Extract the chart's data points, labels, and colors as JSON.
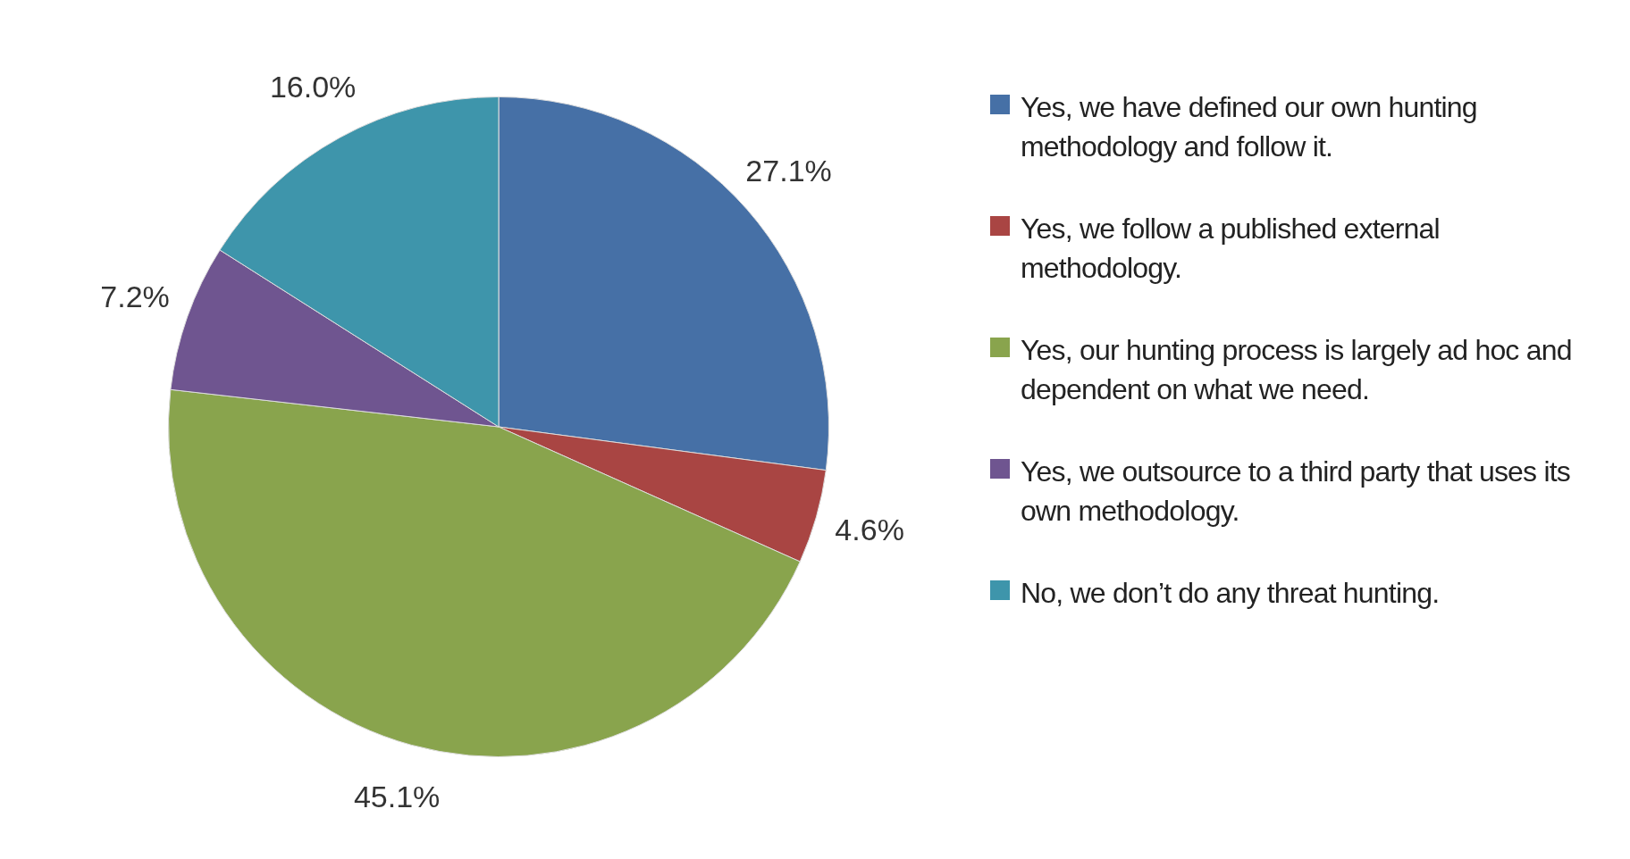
{
  "chart_data": {
    "type": "pie",
    "categories": [
      "Yes, we have defined our own hunting methodology and follow it.",
      "Yes, we follow a published external methodology.",
      "Yes, our hunting process is largely ad hoc and dependent on what we need.",
      "Yes, we outsource to a third party that uses its own methodology.",
      "No, we don’t do any threat hunting."
    ],
    "values": [
      27.1,
      4.6,
      45.1,
      7.2,
      16.0
    ],
    "value_labels": [
      "27.1%",
      "4.6%",
      "45.1%",
      "7.2%",
      "16.0%"
    ],
    "colors": [
      "#4670a6",
      "#a94543",
      "#89a44d",
      "#6f5590",
      "#3e95ab"
    ],
    "legend": "right"
  }
}
